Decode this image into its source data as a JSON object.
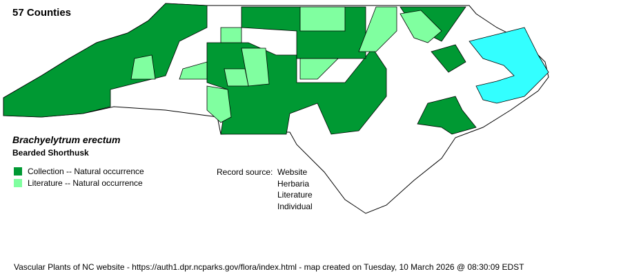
{
  "title": "57 Counties",
  "species": {
    "scientific": "Brachyelytrum erectum",
    "common": "Bearded Shorthusk"
  },
  "legend": [
    {
      "label": "Collection -- Natural occurrence",
      "color": "#009933"
    },
    {
      "label": "Literature -- Natural occurrence",
      "color": "#80ffa0"
    }
  ],
  "record_source": {
    "label": "Record source:",
    "values": [
      "Website",
      "Herbaria",
      "Literature",
      "Individual"
    ]
  },
  "colors": {
    "water": "#33ffff",
    "county_default": "#ffffff"
  },
  "footer": "Vascular Plants of NC website - https://auth1.dpr.ncparks.gov/flora/index.html - map created on Tuesday, 10 March 2026 @ 08:30:09 EDST"
}
